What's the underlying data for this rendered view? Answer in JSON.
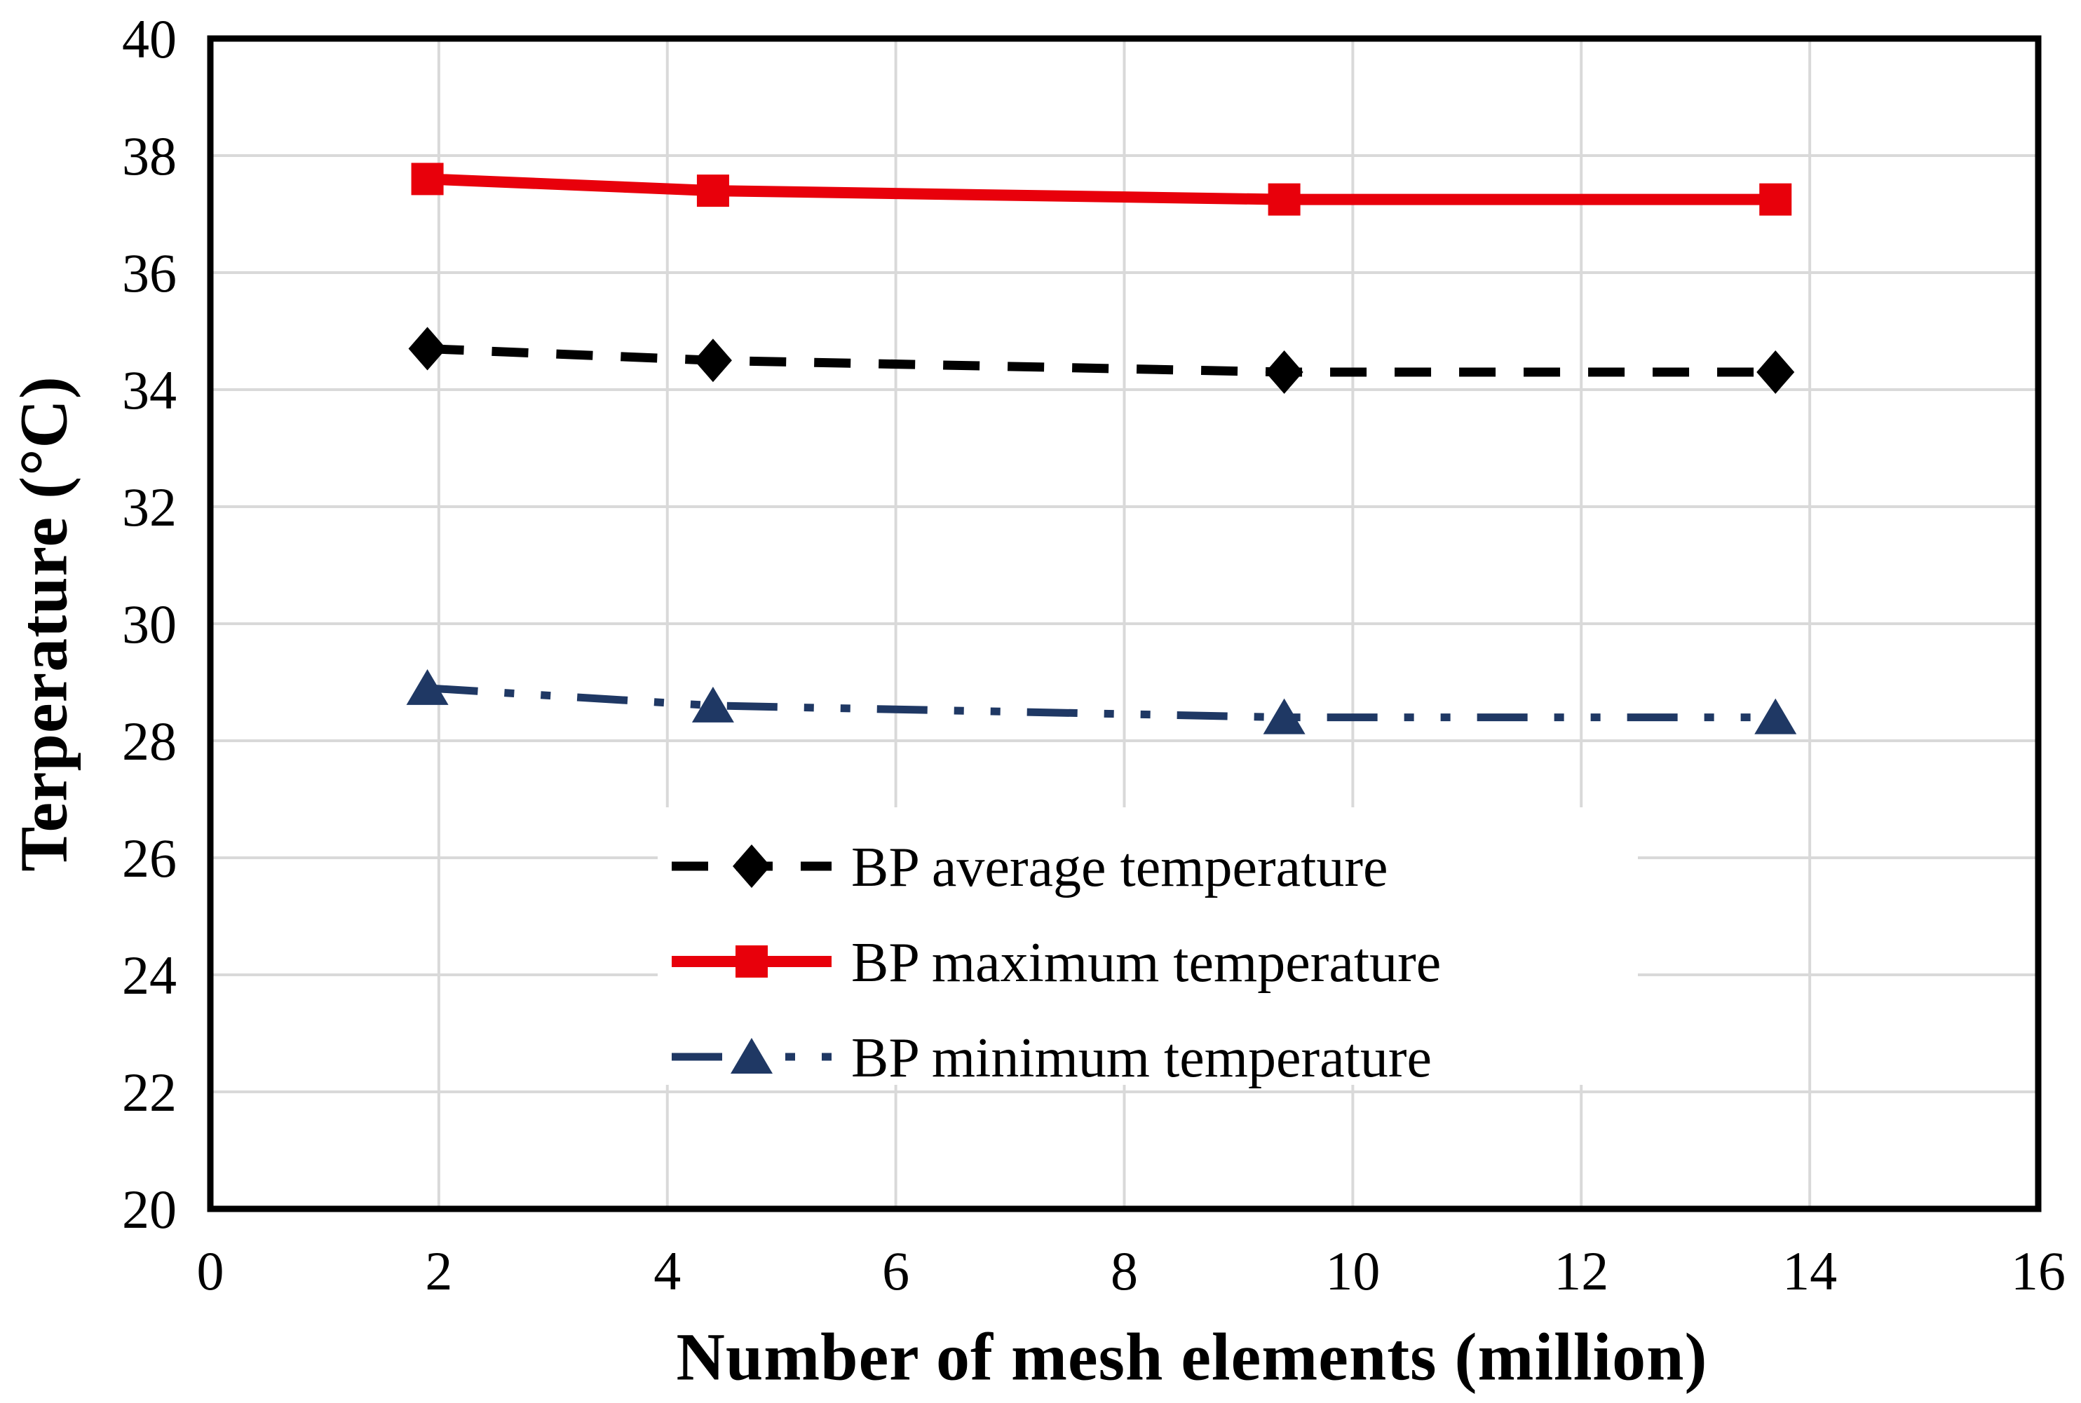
{
  "chart_data": {
    "type": "line",
    "title": "",
    "xlabel": "Number of mesh elements (million)",
    "ylabel": "Terperature (°C)",
    "xlim": [
      0,
      16
    ],
    "ylim": [
      20,
      40
    ],
    "x_ticks": [
      0,
      2,
      4,
      6,
      8,
      10,
      12,
      14,
      16
    ],
    "y_ticks": [
      20,
      22,
      24,
      26,
      28,
      30,
      32,
      34,
      36,
      38,
      40
    ],
    "grid": true,
    "grid_color": "#d9d9d9",
    "axis_color": "#000000",
    "tick_label_color": "#000000",
    "background": "#ffffff",
    "legend_position": "inside lower center",
    "x": [
      1.9,
      4.4,
      9.4,
      13.7
    ],
    "series": [
      {
        "name": "BP average temperature",
        "values": [
          34.7,
          34.5,
          34.3,
          34.3
        ],
        "color": "#000000",
        "line_style": "dashed",
        "marker": "diamond"
      },
      {
        "name": "BP maximum temperature",
        "values": [
          37.6,
          37.4,
          37.25,
          37.25
        ],
        "color": "#e8000b",
        "line_style": "solid",
        "marker": "square"
      },
      {
        "name": "BP minimum temperature",
        "values": [
          28.9,
          28.6,
          28.4,
          28.4
        ],
        "color": "#1f3864",
        "line_style": "long-dash-dot-dot",
        "marker": "triangle"
      }
    ]
  }
}
